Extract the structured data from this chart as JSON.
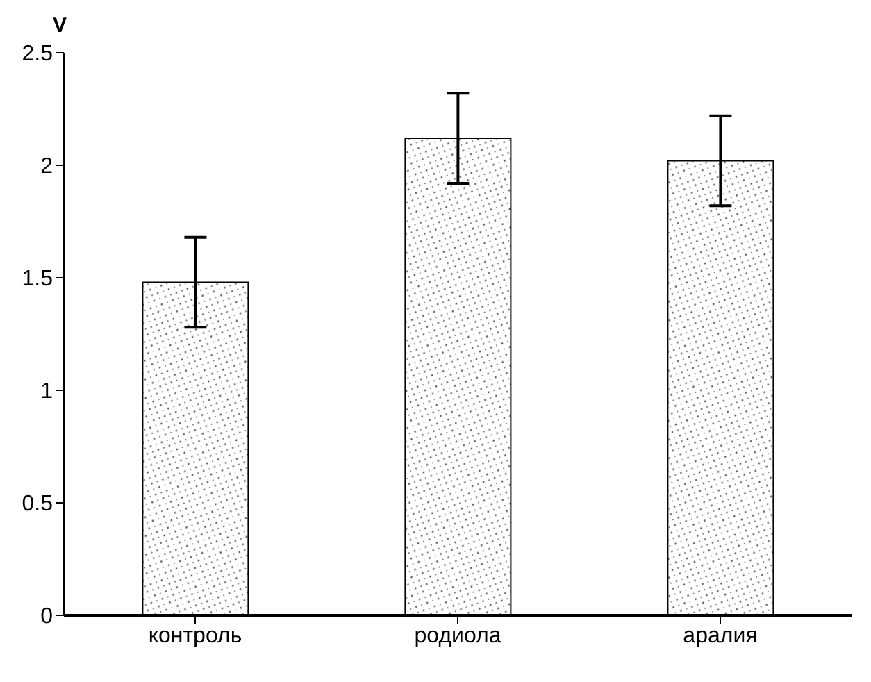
{
  "chart_data": {
    "type": "bar",
    "ylabel": "V",
    "categories": [
      "контроль",
      "родиола",
      "аралия"
    ],
    "values": [
      1.48,
      2.12,
      2.02
    ],
    "errors": [
      0.2,
      0.2,
      0.2
    ],
    "color": "#000000",
    "ylim": [
      0,
      2.5
    ],
    "yticks": [
      0,
      0.5,
      1,
      1.5,
      2,
      2.5
    ],
    "grid": false
  }
}
